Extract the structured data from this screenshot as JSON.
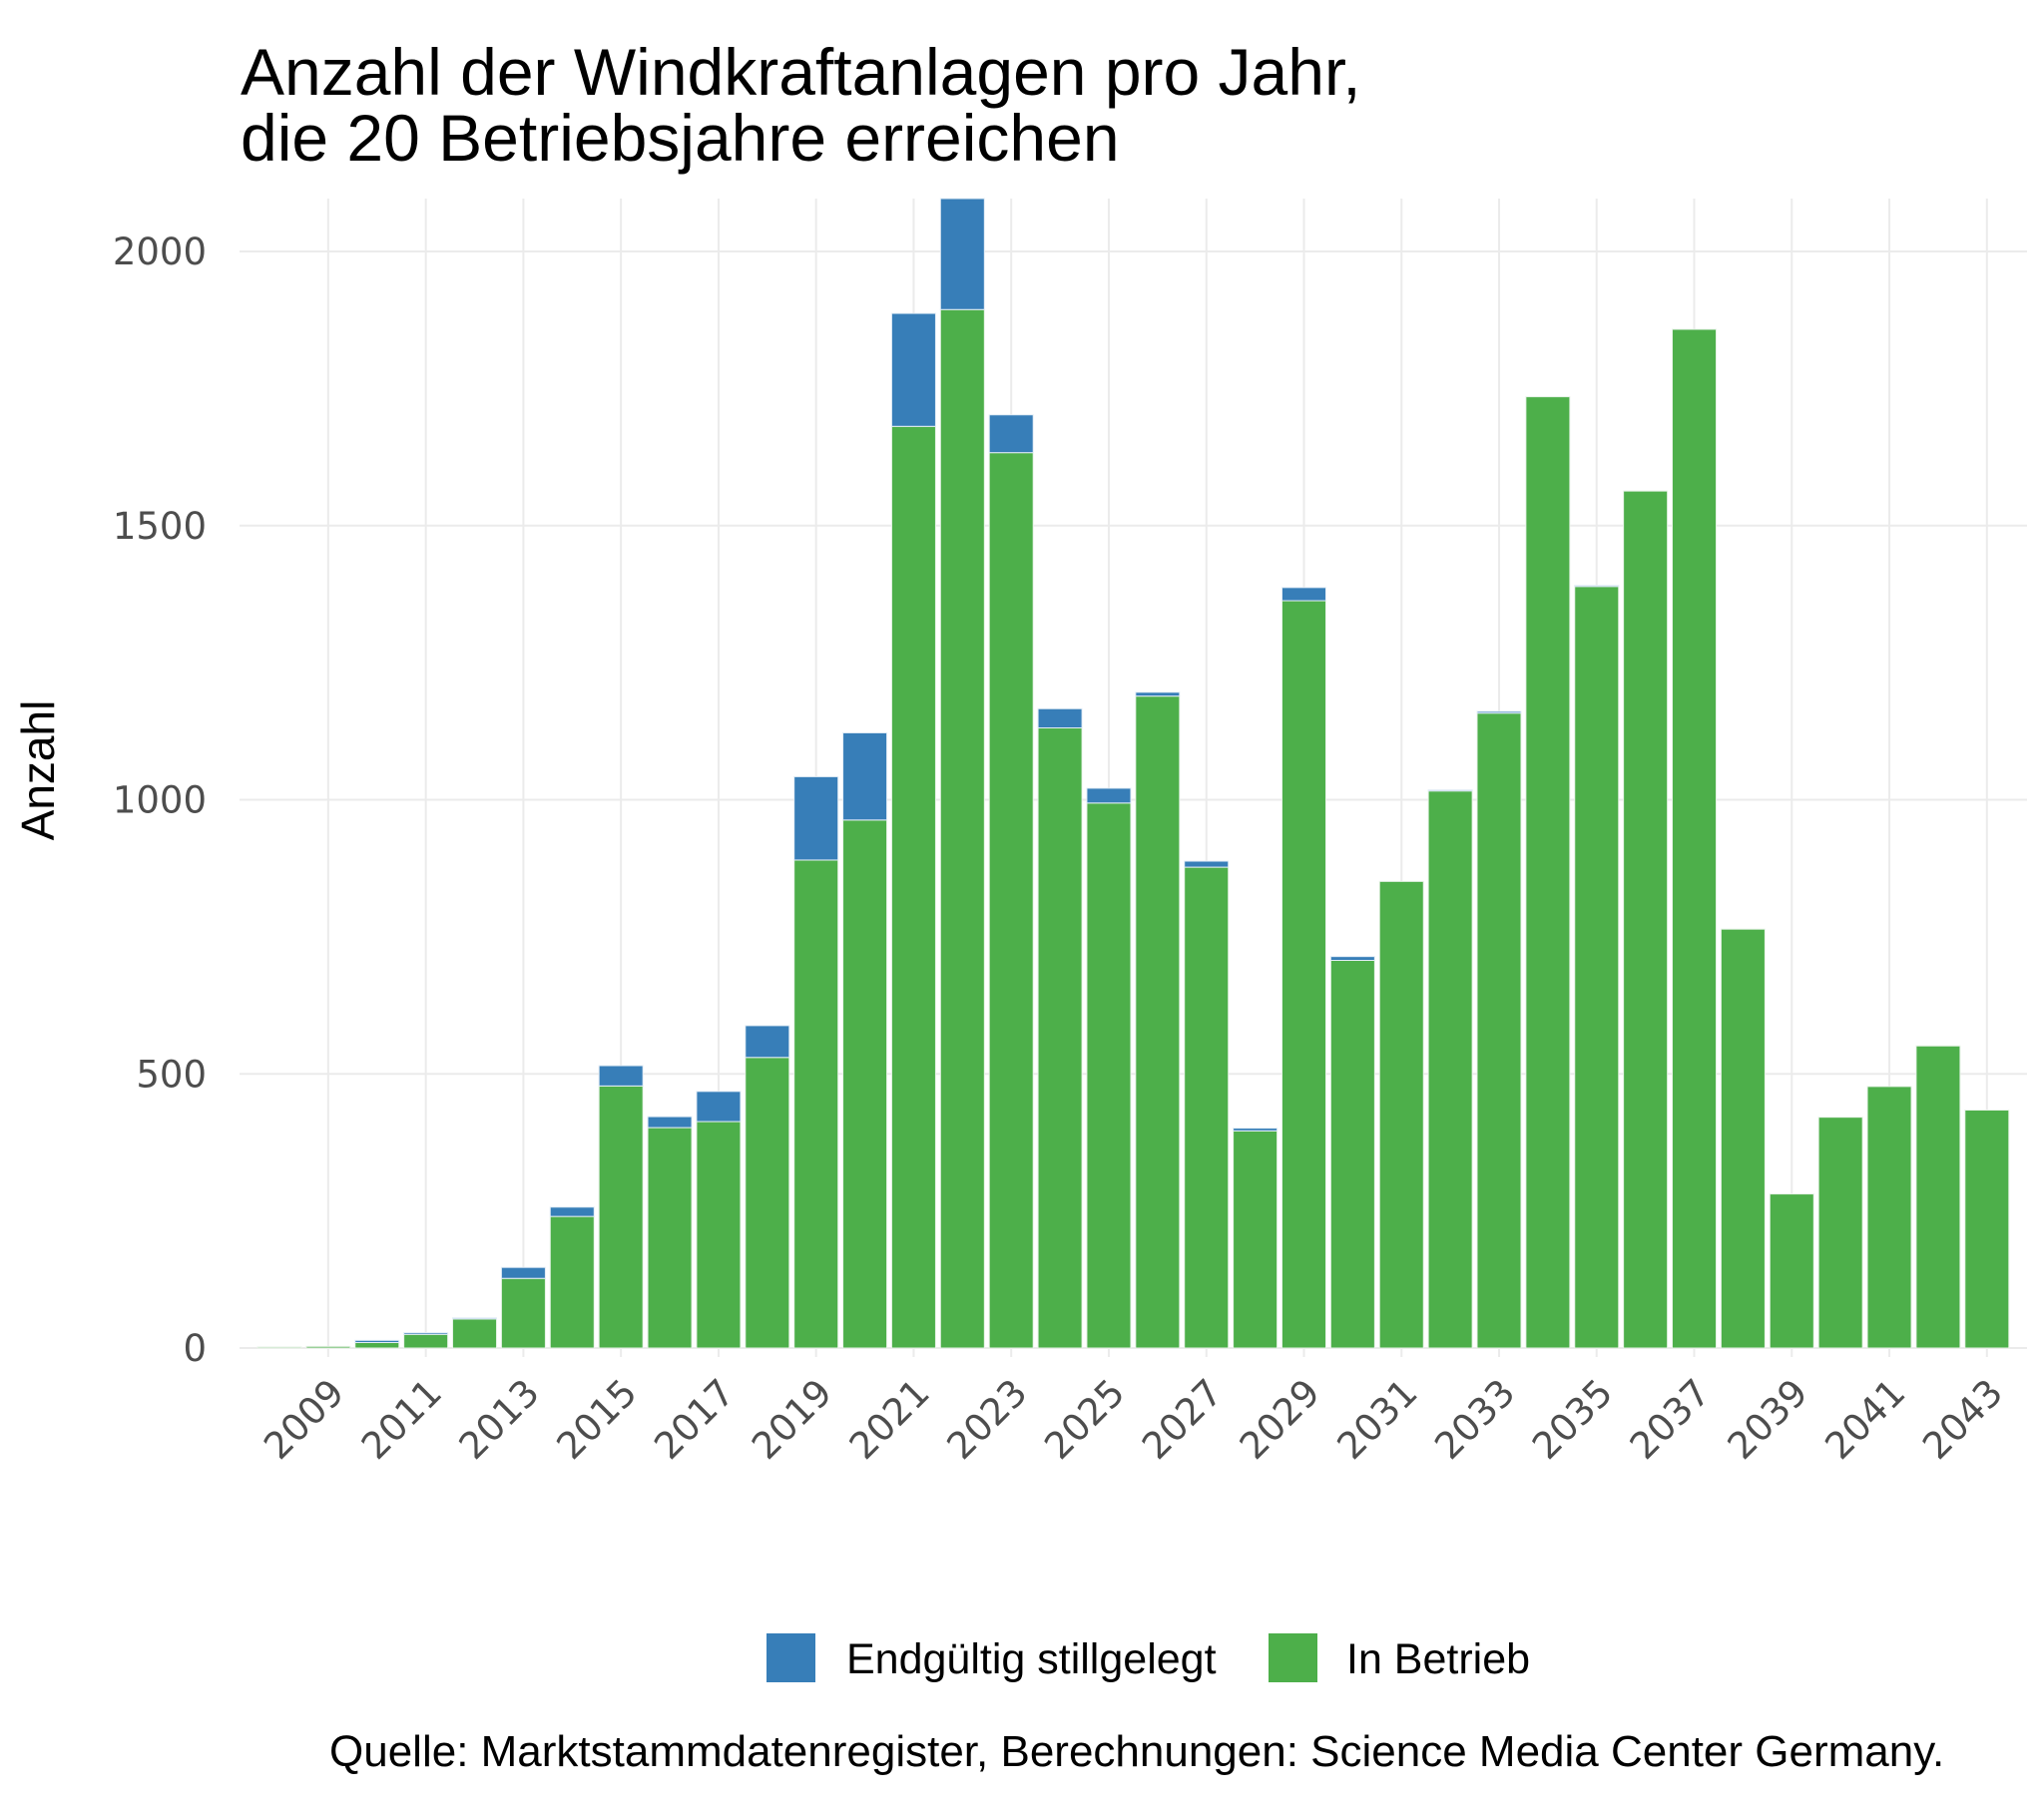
{
  "chart_data": {
    "type": "bar",
    "stacked": true,
    "title": "Anzahl der Windkraftanlagen pro Jahr,\ndie 20 Betriebsjahre erreichen",
    "title_lines": [
      "Anzahl der Windkraftanlagen pro Jahr,",
      "die 20 Betriebsjahre erreichen"
    ],
    "xlabel": "",
    "ylabel": "Anzahl",
    "ylim": [
      0,
      2096
    ],
    "y_ticks": [
      0,
      500,
      1000,
      1500,
      2000
    ],
    "y_tick_labels": [
      "0",
      "500",
      "1000",
      "1500",
      "2000"
    ],
    "categories": [
      2008,
      2009,
      2010,
      2011,
      2012,
      2013,
      2014,
      2015,
      2016,
      2017,
      2018,
      2019,
      2020,
      2021,
      2022,
      2023,
      2024,
      2025,
      2026,
      2027,
      2028,
      2029,
      2030,
      2031,
      2032,
      2033,
      2034,
      2035,
      2036,
      2037,
      2038,
      2039,
      2040,
      2041,
      2042,
      2043
    ],
    "x_ticks": [
      2009,
      2011,
      2013,
      2015,
      2017,
      2019,
      2021,
      2023,
      2025,
      2027,
      2029,
      2031,
      2033,
      2035,
      2037,
      2039,
      2041,
      2043
    ],
    "x_tick_labels": [
      "2009",
      "2011",
      "2013",
      "2015",
      "2017",
      "2019",
      "2021",
      "2023",
      "2025",
      "2027",
      "2029",
      "2031",
      "2033",
      "2035",
      "2037",
      "2039",
      "2041",
      "2043"
    ],
    "grid": true,
    "legend_position": "bottom",
    "series": [
      {
        "name": "In Betrieb",
        "color": "#4DAF4A",
        "values": [
          2,
          3,
          10,
          25,
          53,
          127,
          240,
          478,
          402,
          413,
          530,
          890,
          963,
          1681,
          1894,
          1633,
          1131,
          994,
          1189,
          877,
          396,
          1363,
          707,
          851,
          1016,
          1158,
          1735,
          1389,
          1563,
          1858,
          764,
          281,
          421,
          477,
          551,
          434
        ]
      },
      {
        "name": "Endgültig stillgelegt",
        "color": "#377EB8",
        "values": [
          0,
          0,
          4,
          3,
          2,
          20,
          17,
          37,
          20,
          55,
          58,
          152,
          159,
          206,
          210,
          69,
          35,
          27,
          7,
          11,
          5,
          24,
          7,
          0,
          2,
          3,
          0,
          2,
          0,
          0,
          0,
          0,
          0,
          0,
          0,
          0
        ]
      }
    ],
    "legend": [
      {
        "label": "Endgültig stillgelegt",
        "color": "#377EB8"
      },
      {
        "label": "In Betrieb",
        "color": "#4DAF4A"
      }
    ],
    "caption": "Quelle: Marktstammdatenregister, Berechnungen: Science Media Center Germany."
  }
}
